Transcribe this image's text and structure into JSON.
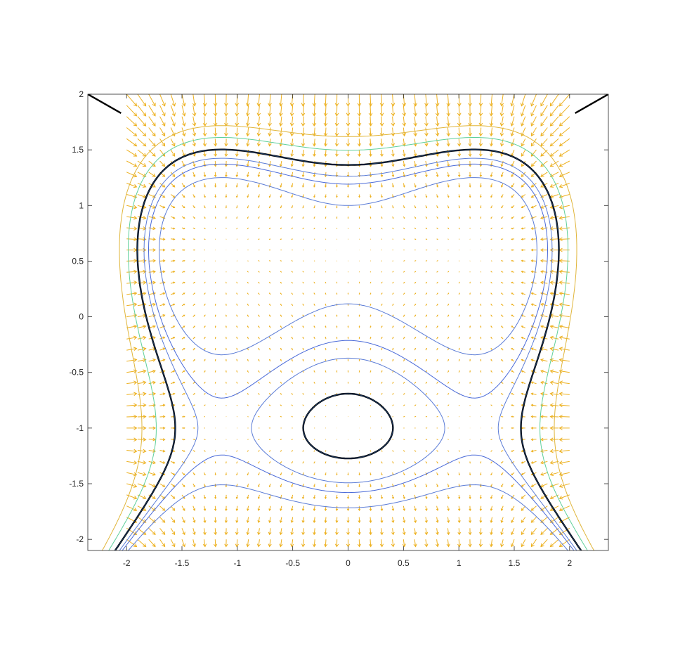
{
  "chart_data": {
    "type": "contour",
    "title": "",
    "xlabel": "",
    "ylabel": "",
    "xlim": [
      -2.35,
      2.35
    ],
    "ylim": [
      -2.1,
      2
    ],
    "grid": false,
    "legend": "none",
    "x_ticks": [
      -2,
      -1.5,
      -1,
      -0.5,
      0,
      0.5,
      1,
      1.5,
      2
    ],
    "x_tick_labels": [
      "-2",
      "-1.5",
      "-1",
      "-0.5",
      "0",
      "0.5",
      "1",
      "1.5",
      "2"
    ],
    "y_ticks": [
      2,
      1.5,
      1,
      0.5,
      0,
      -0.5,
      -1,
      -1.5,
      -2
    ],
    "y_tick_labels": [
      "2",
      "1.5",
      "1",
      "0.5",
      "0",
      "-0.5",
      "-1",
      "-1.5",
      "-2"
    ],
    "quiver_field": {
      "x_range": [
        -2,
        2
      ],
      "y_range": [
        -2.1,
        2
      ],
      "step": 0.1,
      "color": "#EDB120"
    },
    "contours": [
      {
        "level": -0.8,
        "color": "#4A6AD8"
      },
      {
        "level": -0.5,
        "color": "#5B7CD6"
      },
      {
        "level": -1.4,
        "color": "#5B7CD6"
      },
      {
        "level": 0,
        "color": "#1a3a66",
        "emphasized": true
      },
      {
        "level": 0.8,
        "color": "#5FCF9B"
      },
      {
        "level": 1.7,
        "color": "#E0B53A"
      }
    ],
    "boundary_curve": {
      "color": "#000000",
      "x": [
        -2.35,
        2.35
      ]
    },
    "colors": {
      "axes": "#262626",
      "background": "#ffffff"
    }
  }
}
